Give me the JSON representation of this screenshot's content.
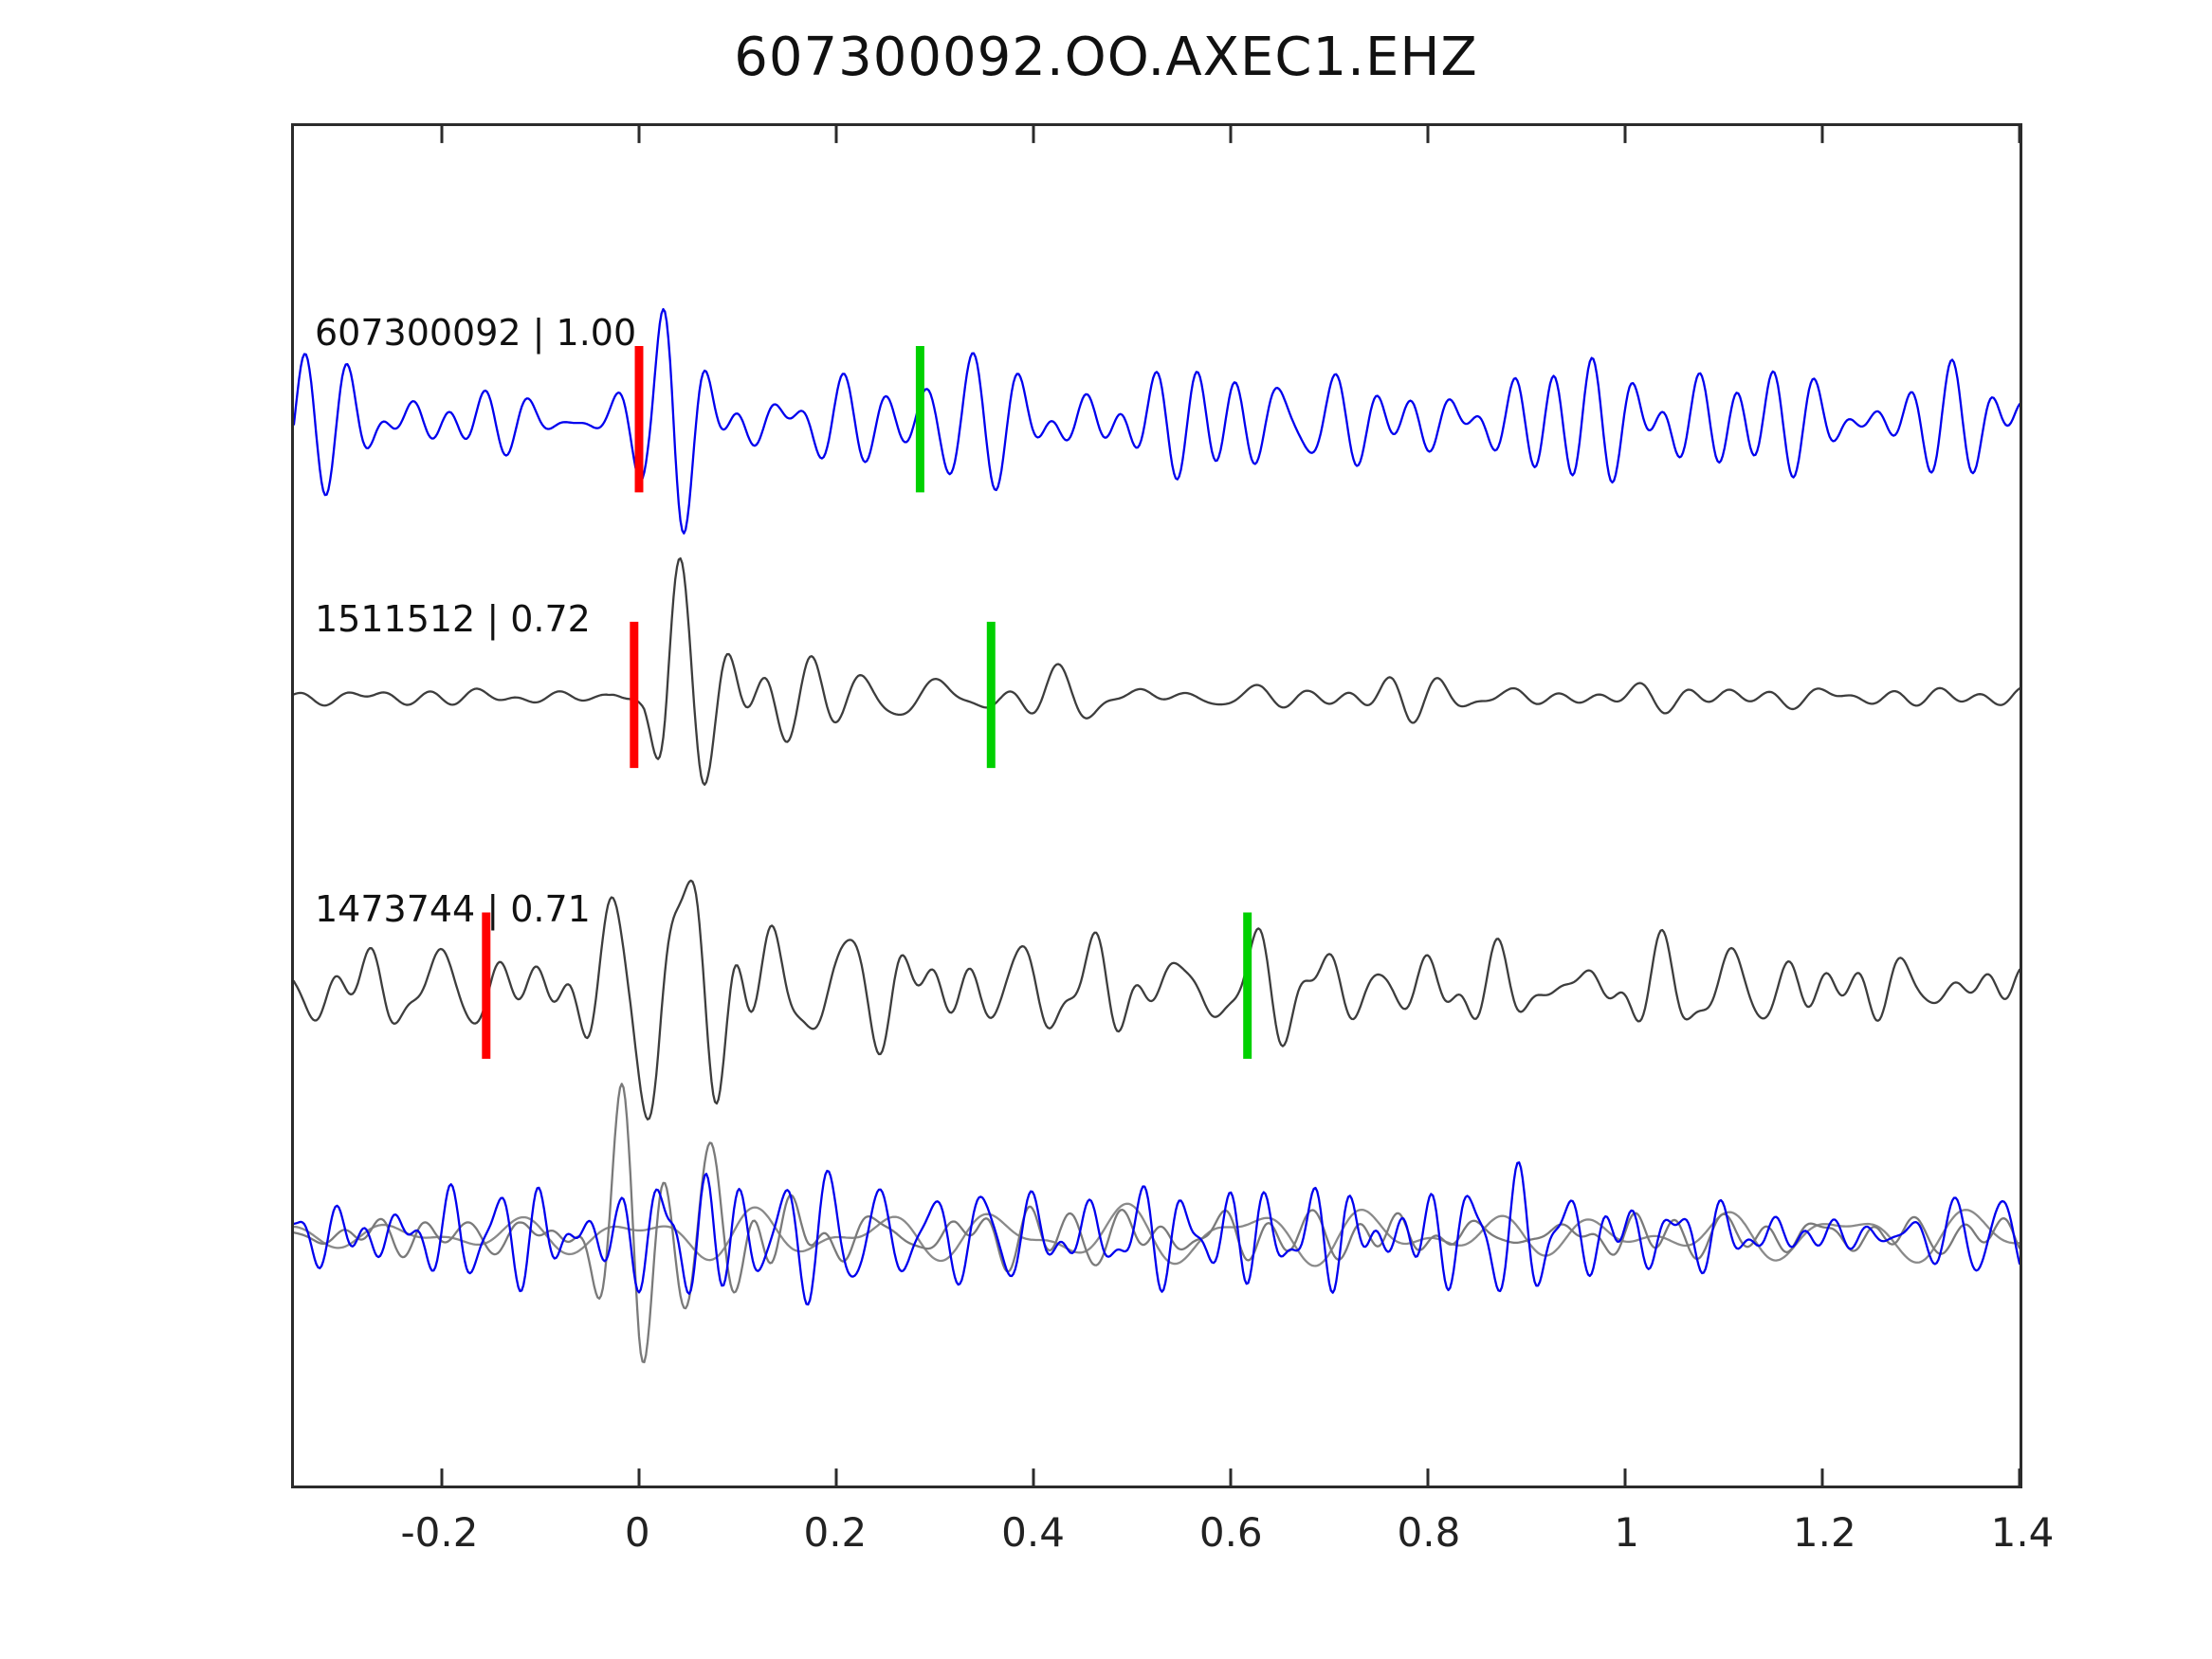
{
  "title": "607300092.OO.AXEC1.EHZ",
  "chart_data": {
    "type": "line",
    "title": "607300092.OO.AXEC1.EHZ",
    "subtitle": "",
    "xlabel": "",
    "ylabel": "",
    "legend": "none",
    "grid": false,
    "x_range": [
      -0.35,
      1.4
    ],
    "x_ticks": [
      {
        "value": -0.2,
        "label": "-0.2"
      },
      {
        "value": 0,
        "label": "0"
      },
      {
        "value": 0.2,
        "label": "0.2"
      },
      {
        "value": 0.4,
        "label": "0.4"
      },
      {
        "value": 0.6,
        "label": "0.6"
      },
      {
        "value": 0.8,
        "label": "0.8"
      },
      {
        "value": 1,
        "label": "1"
      },
      {
        "value": 1.2,
        "label": "1.2"
      },
      {
        "value": 1.4,
        "label": "1.4"
      }
    ],
    "marker_colors": {
      "pick_red": "#ff0000",
      "pick_green": "#00d000"
    },
    "traces": [
      {
        "id": "607300092",
        "label": "607300092 | 1.00",
        "correlation": 1.0,
        "row": 1,
        "color": "#0000ee",
        "pick_red_x": 0.0,
        "pick_green_x": 0.285,
        "base_freq": 27,
        "seed": 11,
        "envelope": [
          [
            -0.35,
            48
          ],
          [
            -0.03,
            48
          ],
          [
            0.01,
            60
          ],
          [
            0.035,
            115
          ],
          [
            0.08,
            80
          ],
          [
            0.18,
            75
          ],
          [
            0.35,
            65
          ],
          [
            0.6,
            55
          ],
          [
            0.9,
            45
          ],
          [
            1.4,
            50
          ]
        ]
      },
      {
        "id": "1511512",
        "label": "1511512 | 0.72",
        "correlation": 0.72,
        "row": 2,
        "color": "#3d3d3d",
        "pick_red_x": -0.005,
        "pick_green_x": 0.357,
        "base_freq": 16,
        "seed": 22,
        "envelope": [
          [
            -0.35,
            7
          ],
          [
            -0.03,
            7
          ],
          [
            0.005,
            40
          ],
          [
            0.03,
            175
          ],
          [
            0.07,
            110
          ],
          [
            0.12,
            70
          ],
          [
            0.2,
            40
          ],
          [
            0.3,
            28
          ],
          [
            0.42,
            30
          ],
          [
            0.55,
            15
          ],
          [
            0.68,
            12
          ],
          [
            0.78,
            30
          ],
          [
            0.88,
            12
          ],
          [
            1.4,
            8
          ]
        ]
      },
      {
        "id": "1473744",
        "label": "1473744 | 0.71",
        "correlation": 0.71,
        "row": 3,
        "color": "#3d3d3d",
        "pick_red_x": -0.155,
        "pick_green_x": 0.617,
        "base_freq": 21,
        "seed": 33,
        "envelope": [
          [
            -0.35,
            38
          ],
          [
            -0.12,
            42
          ],
          [
            -0.06,
            55
          ],
          [
            -0.01,
            90
          ],
          [
            0.02,
            150
          ],
          [
            0.06,
            130
          ],
          [
            0.12,
            75
          ],
          [
            0.2,
            55
          ],
          [
            0.35,
            50
          ],
          [
            0.6,
            48
          ],
          [
            0.9,
            45
          ],
          [
            1.4,
            42
          ]
        ]
      },
      {
        "id": "overlay-gray-smooth",
        "label": "",
        "correlation": null,
        "row": 4,
        "color": "#8a8a8a",
        "pick_red_x": null,
        "pick_green_x": null,
        "base_freq": 9,
        "seed": 44,
        "envelope": [
          [
            -0.35,
            12
          ],
          [
            -0.1,
            20
          ],
          [
            0,
            25
          ],
          [
            0.1,
            30
          ],
          [
            0.3,
            25
          ],
          [
            0.6,
            30
          ],
          [
            1.4,
            22
          ]
        ]
      },
      {
        "id": "overlay-gray-spiky",
        "label": "",
        "correlation": null,
        "row": 4,
        "color": "#7a7a7a",
        "pick_red_x": null,
        "pick_green_x": null,
        "base_freq": 19,
        "seed": 55,
        "envelope": [
          [
            -0.35,
            15
          ],
          [
            -0.12,
            20
          ],
          [
            -0.06,
            60
          ],
          [
            -0.02,
            120
          ],
          [
            0.0,
            150
          ],
          [
            0.04,
            120
          ],
          [
            0.1,
            70
          ],
          [
            0.2,
            45
          ],
          [
            0.35,
            32
          ],
          [
            0.6,
            28
          ],
          [
            0.9,
            24
          ],
          [
            1.4,
            20
          ]
        ]
      },
      {
        "id": "overlay-blue",
        "label": "",
        "correlation": null,
        "row": 4,
        "color": "#0000ee",
        "pick_red_x": null,
        "pick_green_x": null,
        "base_freq": 30,
        "seed": 66,
        "envelope": [
          [
            -0.35,
            30
          ],
          [
            -0.15,
            35
          ],
          [
            -0.08,
            50
          ],
          [
            -0.02,
            40
          ],
          [
            0.01,
            80
          ],
          [
            0.035,
            130
          ],
          [
            0.08,
            85
          ],
          [
            0.15,
            70
          ],
          [
            0.3,
            60
          ],
          [
            0.5,
            55
          ],
          [
            0.8,
            45
          ],
          [
            1.4,
            42
          ]
        ]
      }
    ]
  }
}
